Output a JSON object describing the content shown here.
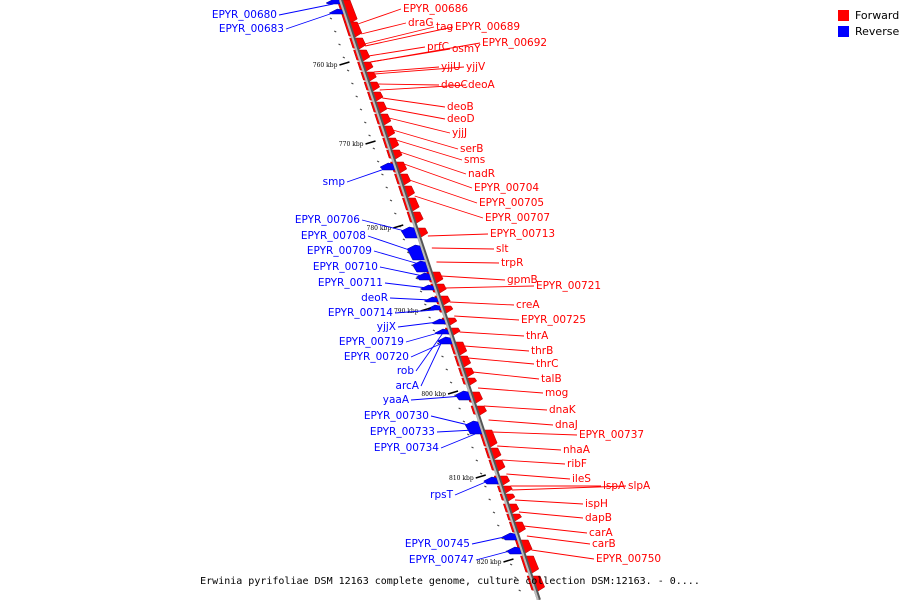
{
  "colors": {
    "forward": "#ff0000",
    "reverse": "#0000ff",
    "backbone": "#999999",
    "tick": "#000000"
  },
  "legend": {
    "forward_label": "Forward",
    "reverse_label": "Reverse"
  },
  "caption": "Erwinia pyrifoliae DSM 12163 complete genome, culture collection DSM:12163. - 0....",
  "kbp_ticks": [
    "760 kbp",
    "770 kbp",
    "780 kbp",
    "790 kbp",
    "800 kbp",
    "810 kbp",
    "820 kbp"
  ],
  "forward_labels": [
    "EPYR_00686",
    "draG",
    "tag",
    "EPYR_00689",
    "prfC",
    "osmY",
    "EPYR_00692",
    "yjjU",
    "yjjV",
    "deoC",
    "deoA",
    "deoB",
    "deoD",
    "yjjJ",
    "serB",
    "sms",
    "nadR",
    "EPYR_00704",
    "EPYR_00705",
    "EPYR_00707",
    "EPYR_00713",
    "slt",
    "trpR",
    "gpmB",
    "EPYR_00721",
    "creA",
    "EPYR_00725",
    "thrA",
    "thrB",
    "thrC",
    "talB",
    "mog",
    "dnaK",
    "dnaJ",
    "EPYR_00737",
    "nhaA",
    "ribF",
    "ileS",
    "lspA",
    "slpA",
    "ispH",
    "dapB",
    "carA",
    "carB",
    "EPYR_00750"
  ],
  "reverse_labels": [
    "EPYR_00680",
    "EPYR_00683",
    "smp",
    "EPYR_00706",
    "EPYR_00708",
    "EPYR_00709",
    "EPYR_00710",
    "EPYR_00711",
    "deoR",
    "EPYR_00714",
    "yjjX",
    "EPYR_00719",
    "EPYR_00720",
    "rob",
    "arcA",
    "yaaA",
    "EPYR_00730",
    "EPYR_00733",
    "EPYR_00734",
    "rpsT",
    "EPYR_00745",
    "EPYR_00747"
  ]
}
